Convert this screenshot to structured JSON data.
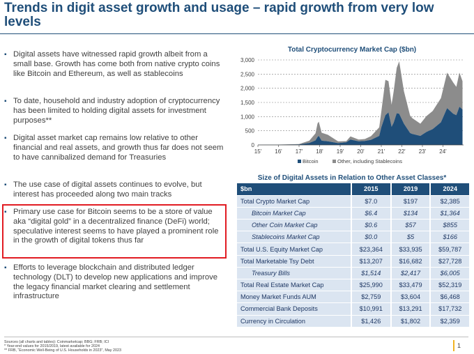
{
  "title": "Trends in digit asset growth and usage – rapid growth from very low levels",
  "bullets": [
    "Digital assets have witnessed rapid growth albeit from a small base. Growth has come both from native crypto coins like Bitcoin and Ethereum, as well as stablecoins",
    "To date, household and industry adoption of cryptocurrency has been limited to holding digital assets for investment purposes**",
    "Digital asset market cap remains low relative to other financial and real assets, and growth thus far does not seem to have cannibalized demand for Treasuries",
    "The use case of digital assets continues to evolve, but interest has proceeded along two main tracks",
    "Primary use case for Bitcoin seems to be a store of value aka “digital gold” in a decentralized finance (DeFi) world; speculative interest seems to have played a prominent role in the growth of digital tokens thus far",
    "Efforts to leverage blockchain and distributed ledger technology (DLT) to develop new applications and improve the legacy financial market clearing and settlement infrastructure"
  ],
  "bullet_marker": "▪",
  "chart_data": {
    "type": "area",
    "title": "Total Cryptocurrency Market Cap ($bn)",
    "x": [
      2015,
      2016,
      2017,
      2017.5,
      2017.8,
      2017.9,
      2017.96,
      2018.1,
      2018.4,
      2018.9,
      2019.3,
      2019.5,
      2019.9,
      2020.2,
      2020.5,
      2020.9,
      2021.0,
      2021.2,
      2021.35,
      2021.5,
      2021.6,
      2021.75,
      2021.87,
      2022.1,
      2022.4,
      2022.5,
      2022.9,
      2023.2,
      2023.5,
      2023.9,
      2024.2,
      2024.5,
      2024.65,
      2024.8,
      2024.95
    ],
    "series": [
      {
        "name": "Bitcoin",
        "color": "#1f4e79",
        "values": [
          4,
          7,
          17,
          70,
          160,
          280,
          320,
          150,
          130,
          65,
          95,
          190,
          130,
          140,
          180,
          320,
          620,
          1050,
          1150,
          640,
          780,
          1120,
          1100,
          750,
          420,
          390,
          320,
          460,
          560,
          800,
          1300,
          1100,
          1050,
          1350,
          1250
        ]
      },
      {
        "name": "Other, including Stablecoins",
        "color": "#8c8c8c",
        "values": [
          3,
          4,
          14,
          80,
          250,
          480,
          500,
          280,
          230,
          60,
          40,
          110,
          60,
          70,
          130,
          300,
          550,
          1250,
          1100,
          780,
          1100,
          1600,
          1850,
          1150,
          620,
          560,
          430,
          560,
          640,
          850,
          1250,
          1100,
          1000,
          1200,
          1000
        ]
      }
    ],
    "xtick_labels": [
      "15'",
      "16'",
      "17'",
      "18'",
      "19'",
      "20'",
      "21'",
      "22'",
      "23'",
      "24'"
    ],
    "ytick_labels": [
      "0",
      "500",
      "1,000",
      "1,500",
      "2,000",
      "2,500",
      "3,000"
    ],
    "ylim": [
      0,
      3000
    ],
    "xlim": [
      2015,
      2025
    ],
    "grid": true,
    "legend_position": "bottom"
  },
  "table": {
    "title": "Size of Digital Assets in Relation to Other Asset Classes*",
    "header": [
      "$bn",
      "2015",
      "2019",
      "2024"
    ],
    "rows": [
      {
        "label": "Total Crypto Market Cap",
        "sub": false,
        "values": [
          "$7.0",
          "$197",
          "$2,385"
        ]
      },
      {
        "label": "Bitcoin Market Cap",
        "sub": true,
        "values": [
          "$6.4",
          "$134",
          "$1,364"
        ]
      },
      {
        "label": "Other Coin Market Cap",
        "sub": true,
        "values": [
          "$0.6",
          "$57",
          "$855"
        ]
      },
      {
        "label": "Stablecoins Market Cap",
        "sub": true,
        "values": [
          "$0.0",
          "$5",
          "$166"
        ]
      },
      {
        "label": "Total U.S. Equity Market Cap",
        "sub": false,
        "values": [
          "$23,364",
          "$33,935",
          "$59,787"
        ]
      },
      {
        "label": "Total Marketable Tsy Debt",
        "sub": false,
        "values": [
          "$13,207",
          "$16,682",
          "$27,728"
        ]
      },
      {
        "label": "Treasury Bills",
        "sub": true,
        "values": [
          "$1,514",
          "$2,417",
          "$6,005"
        ]
      },
      {
        "label": "Total Real Estate Market Cap",
        "sub": false,
        "values": [
          "$25,990",
          "$33,479",
          "$52,319"
        ]
      },
      {
        "label": "Money Market Funds AUM",
        "sub": false,
        "values": [
          "$2,759",
          "$3,604",
          "$6,468"
        ]
      },
      {
        "label": "Commercial Bank Deposits",
        "sub": false,
        "values": [
          "$10,991",
          "$13,291",
          "$17,732"
        ]
      },
      {
        "label": "Currency in Circulation",
        "sub": false,
        "values": [
          "$1,426",
          "$1,802",
          "$2,359"
        ]
      }
    ]
  },
  "footnotes": [
    "Sources (all charts and tables): Coinmarketcap; BBG; FRB; ICI",
    "* Year-end values for 2015/2019, latest available for 2024",
    "** FRB, “Economic Well-Being of U.S. Households in 2023”, May 2023"
  ],
  "page_number": "1",
  "colors": {
    "brand_blue": "#1f4e79",
    "highlight_red": "#e11b22",
    "table_row": "#dbe5f1",
    "accent_gold": "#f0b323"
  }
}
